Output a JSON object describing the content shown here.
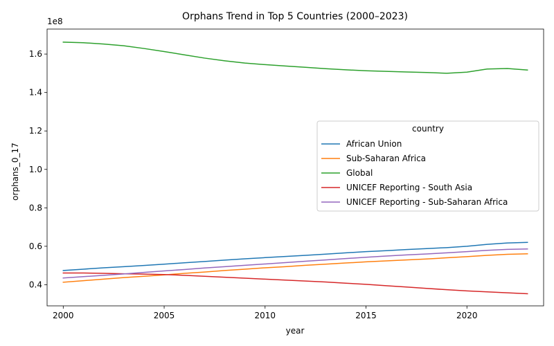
{
  "chart_data": {
    "type": "line",
    "title": "Orphans Trend in Top 5 Countries (2000–2023)",
    "xlabel": "year",
    "ylabel": "orphans_0_17",
    "y_multiplier_label": "1e8",
    "xlim": [
      1999.2,
      2023.8
    ],
    "ylim": [
      0.29,
      1.73
    ],
    "x_ticks": [
      2000,
      2005,
      2010,
      2015,
      2020
    ],
    "y_ticks": [
      0.4,
      0.6,
      0.8,
      1.0,
      1.2,
      1.4,
      1.6
    ],
    "y_tick_labels": [
      "0.4",
      "0.6",
      "0.8",
      "1.0",
      "1.2",
      "1.4",
      "1.6"
    ],
    "grid": false,
    "legend": {
      "title": "country",
      "placement": "center-right"
    },
    "x": [
      2000,
      2001,
      2002,
      2003,
      2004,
      2005,
      2006,
      2007,
      2008,
      2009,
      2010,
      2011,
      2012,
      2013,
      2014,
      2015,
      2016,
      2017,
      2018,
      2019,
      2020,
      2021,
      2022,
      2023
    ],
    "series": [
      {
        "name": "African Union",
        "color": "#1f77b4",
        "values": [
          0.474,
          0.481,
          0.488,
          0.494,
          0.5,
          0.507,
          0.514,
          0.521,
          0.528,
          0.535,
          0.541,
          0.547,
          0.553,
          0.559,
          0.566,
          0.572,
          0.577,
          0.583,
          0.588,
          0.593,
          0.6,
          0.61,
          0.617,
          0.62
        ]
      },
      {
        "name": "Sub-Saharan Africa",
        "color": "#ff7f0e",
        "values": [
          0.413,
          0.421,
          0.429,
          0.437,
          0.444,
          0.451,
          0.459,
          0.466,
          0.474,
          0.481,
          0.488,
          0.494,
          0.501,
          0.507,
          0.513,
          0.519,
          0.524,
          0.529,
          0.534,
          0.54,
          0.546,
          0.553,
          0.558,
          0.561
        ]
      },
      {
        "name": "Global",
        "color": "#2ca02c",
        "values": [
          1.662,
          1.659,
          1.652,
          1.643,
          1.629,
          1.613,
          1.596,
          1.579,
          1.565,
          1.553,
          1.545,
          1.538,
          1.531,
          1.524,
          1.518,
          1.513,
          1.51,
          1.507,
          1.504,
          1.5,
          1.506,
          1.522,
          1.525,
          1.517
        ]
      },
      {
        "name": "UNICEF Reporting - South Asia",
        "color": "#d62728",
        "values": [
          0.461,
          0.461,
          0.459,
          0.457,
          0.455,
          0.453,
          0.449,
          0.444,
          0.439,
          0.434,
          0.429,
          0.424,
          0.419,
          0.414,
          0.408,
          0.402,
          0.395,
          0.388,
          0.381,
          0.374,
          0.368,
          0.363,
          0.358,
          0.353
        ]
      },
      {
        "name": "UNICEF Reporting - Sub-Saharan Africa",
        "color": "#9467bd",
        "values": [
          0.435,
          0.442,
          0.449,
          0.456,
          0.464,
          0.472,
          0.479,
          0.487,
          0.494,
          0.501,
          0.508,
          0.515,
          0.522,
          0.529,
          0.536,
          0.543,
          0.549,
          0.555,
          0.56,
          0.566,
          0.572,
          0.579,
          0.584,
          0.586
        ]
      }
    ]
  }
}
